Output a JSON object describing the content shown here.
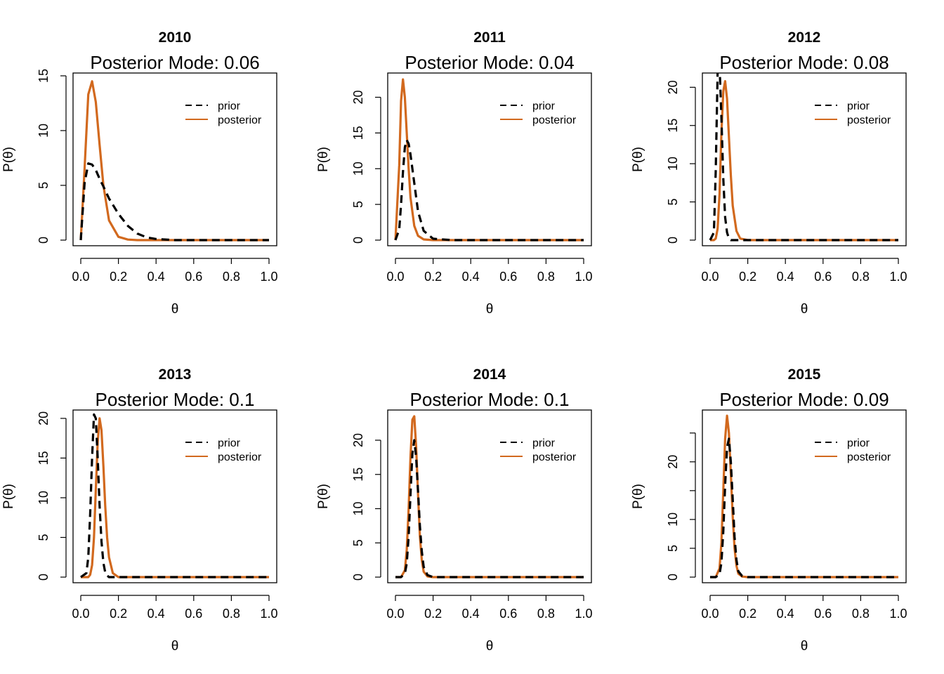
{
  "figure": {
    "colors": {
      "prior": "#000000",
      "posterior": "#D2691E"
    },
    "legend_position": "top-right"
  },
  "chart_data": [
    {
      "type": "line",
      "title": "2010",
      "subtitle": "Posterior Mode: 0.06",
      "xlabel": "θ",
      "ylabel": "P(θ)",
      "xlim": [
        0,
        1
      ],
      "ylim": [
        0,
        15
      ],
      "xticks": [
        "0.0",
        "0.2",
        "0.4",
        "0.6",
        "0.8",
        "1.0"
      ],
      "yticks": [
        "0",
        "5",
        "10",
        "15"
      ],
      "ytick_values": [
        0,
        5,
        10,
        15
      ],
      "legend": [
        "prior",
        "posterior"
      ],
      "x": [
        0,
        0.02,
        0.04,
        0.06,
        0.08,
        0.1,
        0.12,
        0.15,
        0.2,
        0.25,
        0.3,
        0.35,
        0.4,
        0.5,
        0.6,
        0.7,
        0.8,
        0.9,
        1.0
      ],
      "series": [
        {
          "name": "prior",
          "style": "dashed",
          "values": [
            0,
            5.2,
            7.0,
            6.9,
            6.4,
            5.6,
            4.9,
            3.8,
            2.4,
            1.3,
            0.6,
            0.25,
            0.1,
            0,
            0,
            0,
            0,
            0,
            0
          ]
        },
        {
          "name": "posterior",
          "style": "solid",
          "values": [
            0,
            6.5,
            13.3,
            14.5,
            12.6,
            8.7,
            5.0,
            1.8,
            0.3,
            0.05,
            0,
            0,
            0,
            0,
            0,
            0,
            0,
            0,
            0
          ]
        }
      ]
    },
    {
      "type": "line",
      "title": "2011",
      "subtitle": "Posterior Mode: 0.04",
      "xlabel": "θ",
      "ylabel": "P(θ)",
      "xlim": [
        0,
        1
      ],
      "ylim": [
        0,
        23
      ],
      "xticks": [
        "0.0",
        "0.2",
        "0.4",
        "0.6",
        "0.8",
        "1.0"
      ],
      "yticks": [
        "0",
        "5",
        "10",
        "15",
        "20"
      ],
      "ytick_values": [
        0,
        5,
        10,
        15,
        20
      ],
      "legend": [
        "prior",
        "posterior"
      ],
      "x": [
        0,
        0.02,
        0.03,
        0.04,
        0.05,
        0.06,
        0.07,
        0.08,
        0.1,
        0.12,
        0.15,
        0.2,
        0.3,
        0.5,
        0.7,
        1.0
      ],
      "series": [
        {
          "name": "prior",
          "style": "dashed",
          "values": [
            0,
            1.5,
            5.0,
            9.5,
            13.0,
            14.0,
            13.5,
            12.0,
            8.0,
            4.0,
            1.3,
            0.2,
            0,
            0,
            0,
            0
          ]
        },
        {
          "name": "posterior",
          "style": "solid",
          "values": [
            0,
            10.5,
            19.5,
            22.5,
            20.0,
            15.0,
            10.0,
            6.0,
            2.0,
            0.6,
            0.1,
            0,
            0,
            0,
            0,
            0
          ]
        }
      ]
    },
    {
      "type": "line",
      "title": "2012",
      "subtitle": "Posterior Mode: 0.08",
      "xlabel": "θ",
      "ylabel": "P(θ)",
      "xlim": [
        0,
        1
      ],
      "ylim": [
        0,
        21.5
      ],
      "xticks": [
        "0.0",
        "0.2",
        "0.4",
        "0.6",
        "0.8",
        "1.0"
      ],
      "yticks": [
        "0",
        "5",
        "10",
        "15",
        "20"
      ],
      "ytick_values": [
        0,
        5,
        10,
        15,
        20
      ],
      "legend": [
        "prior",
        "posterior"
      ],
      "x": [
        0,
        0.02,
        0.03,
        0.04,
        0.05,
        0.06,
        0.07,
        0.08,
        0.09,
        0.1,
        0.11,
        0.12,
        0.14,
        0.16,
        0.2,
        0.3,
        0.5,
        0.7,
        1.0
      ],
      "series": [
        {
          "name": "prior",
          "style": "dashed",
          "values": [
            0,
            1.0,
            9.0,
            22.0,
            23.0,
            16.0,
            8.0,
            3.0,
            1.0,
            0.2,
            0,
            0,
            0,
            0,
            0,
            0,
            0,
            0,
            0
          ]
        },
        {
          "name": "posterior",
          "style": "solid",
          "values": [
            0,
            0,
            0.2,
            1.5,
            6.0,
            14.0,
            19.5,
            20.8,
            18.5,
            13.5,
            8.5,
            4.5,
            1.2,
            0.2,
            0,
            0,
            0,
            0,
            0
          ]
        }
      ]
    },
    {
      "type": "line",
      "title": "2013",
      "subtitle": "Posterior Mode: 0.1",
      "xlabel": "θ",
      "ylabel": "P(θ)",
      "xlim": [
        0,
        1
      ],
      "ylim": [
        0,
        20.7
      ],
      "xticks": [
        "0.0",
        "0.2",
        "0.4",
        "0.6",
        "0.8",
        "1.0"
      ],
      "yticks": [
        "0",
        "5",
        "10",
        "15",
        "20"
      ],
      "ytick_values": [
        0,
        5,
        10,
        15,
        20
      ],
      "legend": [
        "prior",
        "posterior"
      ],
      "x": [
        0,
        0.03,
        0.04,
        0.05,
        0.06,
        0.07,
        0.08,
        0.09,
        0.1,
        0.11,
        0.12,
        0.13,
        0.14,
        0.15,
        0.17,
        0.2,
        0.3,
        0.5,
        0.7,
        1.0
      ],
      "series": [
        {
          "name": "prior",
          "style": "dashed",
          "values": [
            0,
            0.5,
            2.5,
            8.0,
            15.0,
            20.5,
            20.0,
            15.0,
            9.0,
            4.5,
            1.8,
            0.6,
            0.2,
            0,
            0,
            0,
            0,
            0,
            0,
            0
          ]
        },
        {
          "name": "posterior",
          "style": "solid",
          "values": [
            0,
            0,
            0,
            0.3,
            1.5,
            5.0,
            11.0,
            17.0,
            20.0,
            18.5,
            14.0,
            9.0,
            5.0,
            2.5,
            0.5,
            0,
            0,
            0,
            0,
            0
          ]
        }
      ]
    },
    {
      "type": "line",
      "title": "2014",
      "subtitle": "Posterior Mode: 0.1",
      "xlabel": "θ",
      "ylabel": "P(θ)",
      "xlim": [
        0,
        1
      ],
      "ylim": [
        0,
        24
      ],
      "xticks": [
        "0.0",
        "0.2",
        "0.4",
        "0.6",
        "0.8",
        "1.0"
      ],
      "yticks": [
        "0",
        "5",
        "10",
        "15",
        "20"
      ],
      "ytick_values": [
        0,
        5,
        10,
        15,
        20
      ],
      "legend": [
        "prior",
        "posterior"
      ],
      "x": [
        0,
        0.03,
        0.05,
        0.06,
        0.07,
        0.08,
        0.09,
        0.1,
        0.11,
        0.12,
        0.13,
        0.14,
        0.15,
        0.17,
        0.2,
        0.3,
        0.5,
        0.7,
        1.0
      ],
      "series": [
        {
          "name": "prior",
          "style": "dashed",
          "values": [
            0,
            0,
            0.5,
            2.0,
            6.0,
            12.0,
            18.0,
            20.0,
            17.5,
            12.5,
            7.5,
            3.8,
            1.5,
            0.3,
            0,
            0,
            0,
            0,
            0
          ]
        },
        {
          "name": "posterior",
          "style": "solid",
          "values": [
            0,
            0,
            1.0,
            4.0,
            10.0,
            17.5,
            23.0,
            23.5,
            19.0,
            12.0,
            6.0,
            2.5,
            0.8,
            0.1,
            0,
            0,
            0,
            0,
            0
          ]
        }
      ]
    },
    {
      "type": "line",
      "title": "2015",
      "subtitle": "Posterior Mode: 0.09",
      "xlabel": "θ",
      "ylabel": "P(θ)",
      "xlim": [
        0,
        1
      ],
      "ylim": [
        0,
        28.5
      ],
      "xticks": [
        "0.0",
        "0.2",
        "0.4",
        "0.6",
        "0.8",
        "1.0"
      ],
      "yticks": [
        "0",
        "5",
        "10",
        "",
        "20",
        ""
      ],
      "ytick_values": [
        0,
        5,
        10,
        15,
        20,
        25
      ],
      "legend": [
        "prior",
        "posterior"
      ],
      "x": [
        0,
        0.03,
        0.05,
        0.06,
        0.07,
        0.08,
        0.09,
        0.1,
        0.11,
        0.12,
        0.13,
        0.14,
        0.15,
        0.17,
        0.2,
        0.3,
        0.5,
        0.7,
        1.0
      ],
      "series": [
        {
          "name": "prior",
          "style": "dashed",
          "values": [
            0,
            0,
            0.5,
            2.5,
            8.0,
            16.0,
            22.5,
            24.0,
            20.0,
            13.5,
            7.0,
            3.0,
            1.0,
            0.2,
            0,
            0,
            0,
            0,
            0
          ]
        },
        {
          "name": "posterior",
          "style": "solid",
          "values": [
            0,
            0,
            1.5,
            6.0,
            15.0,
            24.0,
            28.0,
            25.0,
            18.0,
            10.5,
            5.0,
            2.0,
            0.6,
            0.1,
            0,
            0,
            0,
            0,
            0
          ]
        }
      ]
    }
  ]
}
